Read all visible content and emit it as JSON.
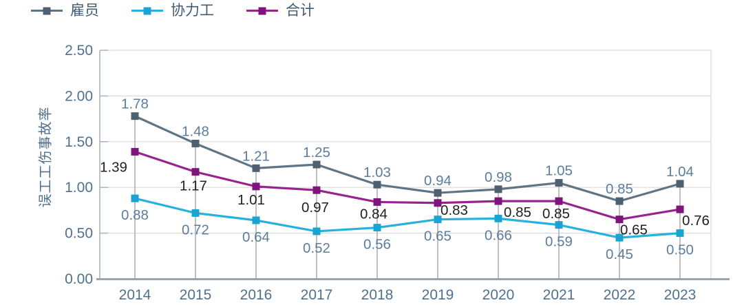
{
  "page": {
    "background": "#ffffff"
  },
  "chart_data": {
    "type": "line",
    "title": "",
    "xlabel": "",
    "ylabel": "误工工伤事故率",
    "x_categories": [
      "2014",
      "2015",
      "2016",
      "2017",
      "2018",
      "2019",
      "2020",
      "2021",
      "2022",
      "2023"
    ],
    "ylim": [
      0,
      2.5
    ],
    "ytick_labels": [
      "0.00",
      "0.50",
      "1.00",
      "1.50",
      "2.00",
      "2.50"
    ],
    "grid": "horizontal",
    "legend_position": "top-left",
    "value_label_decimals": 2,
    "series": [
      {
        "name": "雇员",
        "color": "#5d7585",
        "marker_color": "#4f6170",
        "label_color": "#5c7d9d",
        "values": [
          1.78,
          1.48,
          1.21,
          1.25,
          1.03,
          0.94,
          0.98,
          1.05,
          0.85,
          1.04
        ]
      },
      {
        "name": "协力工",
        "color": "#28b1dd",
        "marker_color": "#1ba4d3",
        "label_color": "#5c7d9d",
        "values": [
          0.88,
          0.72,
          0.64,
          0.52,
          0.56,
          0.65,
          0.66,
          0.59,
          0.45,
          0.5
        ]
      },
      {
        "name": "合计",
        "color": "#97248e",
        "marker_color": "#7d157d",
        "label_color": "#1f1f1f",
        "values": [
          1.39,
          1.17,
          1.01,
          0.97,
          0.84,
          0.83,
          0.85,
          0.85,
          0.65,
          0.76
        ]
      }
    ],
    "axis_colors": {
      "tick_label_color": "#50708f",
      "x_axis_line_color": "#9aa4ad",
      "y_axis_line_color": "#aab3bc",
      "grid_color": "#d9d9d9",
      "drop_line_color": "#b4b9be"
    }
  }
}
